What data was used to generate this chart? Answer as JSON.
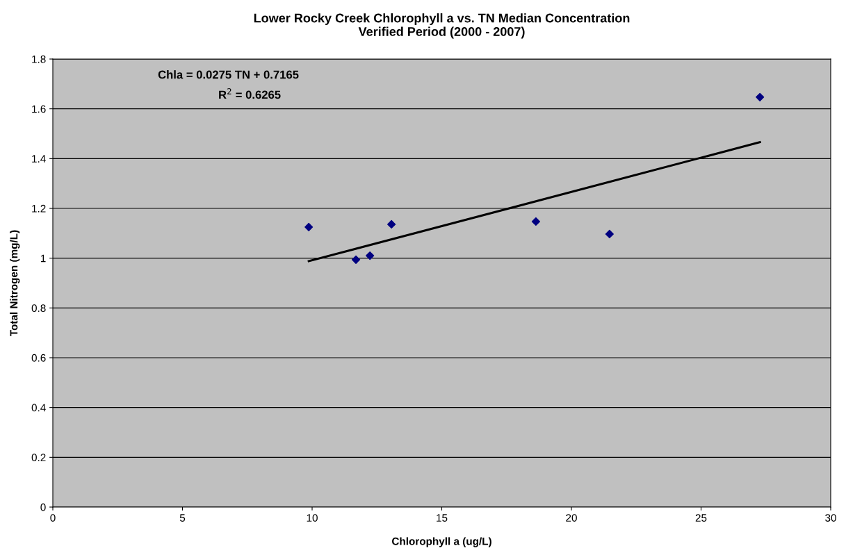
{
  "chart_data": {
    "type": "scatter",
    "title": "Lower Rocky Creek Chlorophyll a vs. TN Median Concentration\nVerified Period (2000 - 2007)",
    "xlabel": "Chlorophyll a (ug/L)",
    "ylabel": "Total Nitrogen (mg/L)",
    "series": [
      {
        "color": "#000080",
        "marker": "diamond",
        "x": [
          9.87,
          11.69,
          12.23,
          13.06,
          18.63,
          21.47,
          27.27
        ],
        "values": [
          1.125,
          0.994,
          1.01,
          1.136,
          1.147,
          1.097,
          1.647
        ]
      },
      {
        "type": "line",
        "color": "#000000",
        "marker": "none",
        "line_style": "solid",
        "x": [
          9.87,
          27.27
        ],
        "values": [
          0.988,
          1.466
        ]
      }
    ],
    "annotations": [
      "Chla = 0.0275 TN + 0.7165",
      "R$^{2}$ = 0.6265"
    ],
    "xlim": [
      0,
      30
    ],
    "xticks": [
      0,
      5,
      10,
      15,
      20,
      25,
      30
    ],
    "ylim": [
      0,
      1.8
    ],
    "yticks": [
      0,
      0.2,
      0.4,
      0.6,
      0.8,
      1,
      1.2,
      1.4,
      1.6,
      1.8
    ],
    "grid": "y",
    "legend": false
  }
}
